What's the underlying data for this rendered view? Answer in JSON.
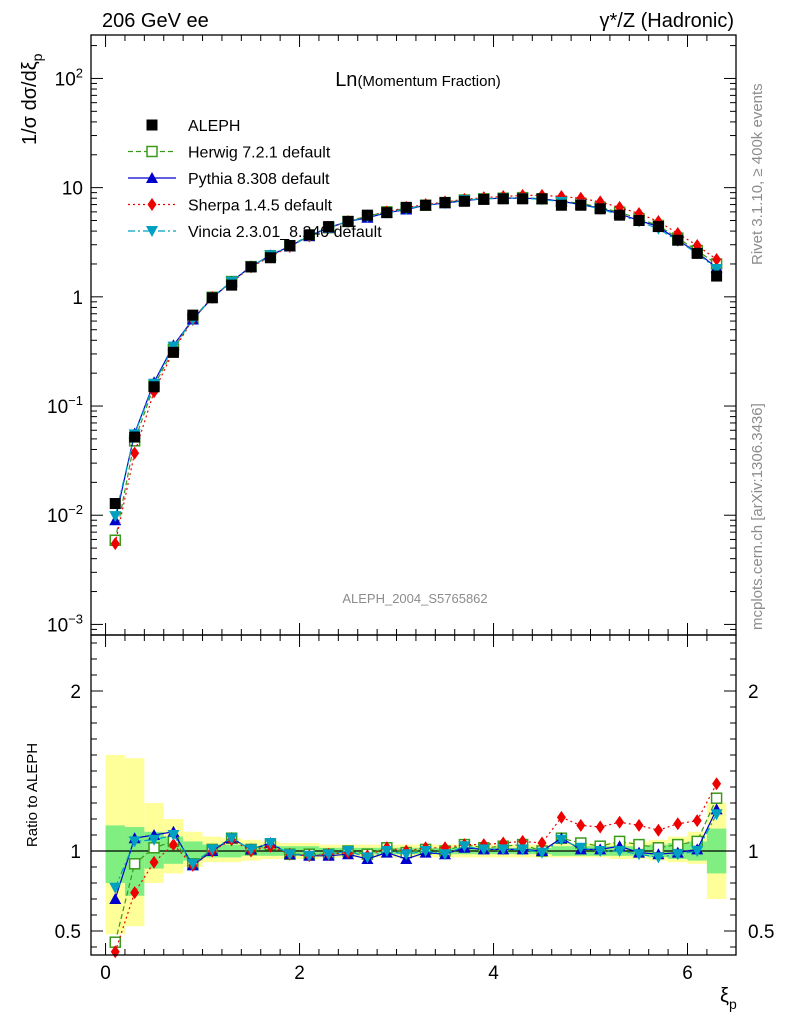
{
  "header": {
    "left": "206 GeV ee",
    "right": "γ*/Z (Hadronic)"
  },
  "side_text": {
    "rivet": "Rivet 3.1.10, ≥ 400k events",
    "mcplots": "mcplots.cern.ch [arXiv:1306.3436]"
  },
  "colors": {
    "aleph": "#000000",
    "herwig": "#3a9a1a",
    "pythia": "#0000cc",
    "sherpa": "#ee0000",
    "vincia": "#00a0c0",
    "band_outer": "#ffff99",
    "band_inner": "#80ee80"
  },
  "chart_data": [
    {
      "type": "line",
      "title": "Ln(Momentum Fraction)",
      "title_main": "Ln",
      "title_sub": "(Momentum Fraction)",
      "watermark": "ALEPH_2004_S5765862",
      "xlabel": "ξ",
      "xlabel_sub": "p",
      "ylabel": "1/σ dσ/dξ",
      "ylabel_sub": "p",
      "yscale": "log",
      "xlim": [
        -0.15,
        6.5
      ],
      "ylim": [
        0.0008,
        250
      ],
      "x_ticks": [
        "0",
        "2",
        "4",
        "6"
      ],
      "y_tick_labels": [
        {
          "v": 0.001,
          "base": "10",
          "exp": "−3"
        },
        {
          "v": 0.01,
          "base": "10",
          "exp": "−2"
        },
        {
          "v": 0.1,
          "base": "10",
          "exp": "−1"
        },
        {
          "v": 1,
          "base": "1",
          "exp": ""
        },
        {
          "v": 10,
          "base": "10",
          "exp": ""
        },
        {
          "v": 100,
          "base": "10",
          "exp": "2"
        }
      ],
      "x": [
        0.1,
        0.3,
        0.5,
        0.7,
        0.9,
        1.1,
        1.3,
        1.5,
        1.7,
        1.9,
        2.1,
        2.3,
        2.5,
        2.7,
        2.9,
        3.1,
        3.3,
        3.5,
        3.7,
        3.9,
        4.1,
        4.3,
        4.5,
        4.7,
        4.9,
        5.1,
        5.3,
        5.5,
        5.7,
        5.9,
        6.1,
        6.3
      ],
      "legend": [
        "ALEPH",
        "Herwig 7.2.1 default",
        "Pythia 8.308 default",
        "Sherpa 1.4.5 default",
        "Vincia 2.3.01_8.240 default"
      ],
      "series": [
        {
          "name": "ALEPH",
          "marker": "square",
          "values": [
            0.0128,
            0.052,
            0.15,
            0.31,
            0.68,
            0.98,
            1.28,
            1.88,
            2.28,
            2.95,
            3.7,
            4.4,
            4.9,
            5.6,
            5.9,
            6.6,
            6.9,
            7.3,
            7.5,
            7.8,
            7.9,
            7.9,
            7.9,
            6.9,
            6.9,
            6.4,
            5.6,
            5.0,
            4.4,
            3.3,
            2.5,
            1.55
          ]
        },
        {
          "name": "Herwig 7.2.1 default",
          "marker": "open-square",
          "values": [
            0.0059,
            0.048,
            0.153,
            0.33,
            0.63,
            0.99,
            1.38,
            1.89,
            2.38,
            2.93,
            3.65,
            4.3,
            4.9,
            5.5,
            6.0,
            6.5,
            6.9,
            7.3,
            7.7,
            7.9,
            8.0,
            8.1,
            7.9,
            7.5,
            7.2,
            6.6,
            5.95,
            5.2,
            4.5,
            3.45,
            2.65,
            2.0
          ]
        },
        {
          "name": "Pythia 8.308 default",
          "marker": "triangle-up",
          "values": [
            0.009,
            0.056,
            0.165,
            0.36,
            0.62,
            0.98,
            1.38,
            1.9,
            2.4,
            2.9,
            3.6,
            4.3,
            4.9,
            5.3,
            5.9,
            6.3,
            6.9,
            7.2,
            7.6,
            7.9,
            8.0,
            8.0,
            7.9,
            7.5,
            7.0,
            6.5,
            5.75,
            5.0,
            4.4,
            3.3,
            2.55,
            1.85
          ]
        },
        {
          "name": "Sherpa 1.4.5 default",
          "marker": "diamond",
          "values": [
            0.0055,
            0.037,
            0.135,
            0.32,
            0.62,
            0.99,
            1.35,
            1.88,
            2.33,
            2.88,
            3.6,
            4.3,
            4.9,
            5.5,
            6.0,
            6.6,
            7.0,
            7.4,
            7.8,
            8.1,
            8.3,
            8.5,
            8.5,
            8.3,
            8.0,
            7.4,
            6.6,
            5.8,
            4.9,
            3.8,
            2.95,
            2.2
          ]
        },
        {
          "name": "Vincia 2.3.01_8.240 default",
          "marker": "triangle-down",
          "values": [
            0.0098,
            0.055,
            0.16,
            0.35,
            0.62,
            0.99,
            1.38,
            1.9,
            2.4,
            2.9,
            3.6,
            4.3,
            4.9,
            5.4,
            5.9,
            6.4,
            6.9,
            7.2,
            7.7,
            7.9,
            8.0,
            8.0,
            7.8,
            7.4,
            7.0,
            6.4,
            5.6,
            4.9,
            4.2,
            3.25,
            2.5,
            1.8
          ]
        }
      ]
    },
    {
      "type": "line",
      "ylabel": "Ratio to ALEPH",
      "xlabel": "ξ",
      "xlabel_sub": "p",
      "xlim": [
        -0.15,
        6.5
      ],
      "ylim": [
        0.35,
        2.35
      ],
      "y_ticks": [
        "0.5",
        "1",
        "2"
      ],
      "x": [
        0.1,
        0.3,
        0.5,
        0.7,
        0.9,
        1.1,
        1.3,
        1.5,
        1.7,
        1.9,
        2.1,
        2.3,
        2.5,
        2.7,
        2.9,
        3.1,
        3.3,
        3.5,
        3.7,
        3.9,
        4.1,
        4.3,
        4.5,
        4.7,
        4.9,
        5.1,
        5.3,
        5.5,
        5.7,
        5.9,
        6.1,
        6.3
      ],
      "band_outer": [
        [
          0.48,
          1.6
        ],
        [
          0.53,
          1.58
        ],
        [
          0.8,
          1.3
        ],
        [
          0.86,
          1.2
        ],
        [
          0.9,
          1.12
        ],
        [
          0.93,
          1.09
        ],
        [
          0.93,
          1.08
        ],
        [
          0.94,
          1.07
        ],
        [
          0.95,
          1.06
        ],
        [
          0.95,
          1.05
        ],
        [
          0.95,
          1.05
        ],
        [
          0.96,
          1.04
        ],
        [
          0.96,
          1.04
        ],
        [
          0.96,
          1.04
        ],
        [
          0.96,
          1.04
        ],
        [
          0.96,
          1.04
        ],
        [
          0.96,
          1.04
        ],
        [
          0.96,
          1.04
        ],
        [
          0.96,
          1.04
        ],
        [
          0.96,
          1.04
        ],
        [
          0.96,
          1.04
        ],
        [
          0.96,
          1.04
        ],
        [
          0.96,
          1.04
        ],
        [
          0.96,
          1.05
        ],
        [
          0.96,
          1.05
        ],
        [
          0.96,
          1.05
        ],
        [
          0.95,
          1.05
        ],
        [
          0.95,
          1.06
        ],
        [
          0.94,
          1.07
        ],
        [
          0.93,
          1.09
        ],
        [
          0.92,
          1.12
        ],
        [
          0.7,
          1.3
        ]
      ],
      "band_inner": [
        [
          0.8,
          1.16
        ],
        [
          0.72,
          1.15
        ],
        [
          0.89,
          1.12
        ],
        [
          0.92,
          1.09
        ],
        [
          0.94,
          1.06
        ],
        [
          0.96,
          1.04
        ],
        [
          0.96,
          1.04
        ],
        [
          0.97,
          1.03
        ],
        [
          0.97,
          1.03
        ],
        [
          0.97,
          1.03
        ],
        [
          0.97,
          1.03
        ],
        [
          0.98,
          1.02
        ],
        [
          0.98,
          1.02
        ],
        [
          0.98,
          1.02
        ],
        [
          0.98,
          1.02
        ],
        [
          0.98,
          1.02
        ],
        [
          0.98,
          1.02
        ],
        [
          0.98,
          1.02
        ],
        [
          0.98,
          1.02
        ],
        [
          0.98,
          1.02
        ],
        [
          0.98,
          1.02
        ],
        [
          0.98,
          1.02
        ],
        [
          0.98,
          1.02
        ],
        [
          0.97,
          1.03
        ],
        [
          0.97,
          1.03
        ],
        [
          0.97,
          1.03
        ],
        [
          0.97,
          1.03
        ],
        [
          0.97,
          1.03
        ],
        [
          0.96,
          1.04
        ],
        [
          0.95,
          1.05
        ],
        [
          0.94,
          1.06
        ],
        [
          0.86,
          1.14
        ]
      ],
      "series": [
        {
          "name": "Herwig 7.2.1 default",
          "marker": "open-square",
          "values": [
            0.43,
            0.92,
            1.02,
            1.06,
            0.92,
            1.01,
            1.08,
            1.01,
            1.04,
            0.98,
            0.98,
            0.98,
            1.0,
            0.98,
            1.02,
            0.99,
            1.01,
            1.0,
            1.04,
            1.02,
            1.03,
            1.04,
            1.0,
            1.08,
            1.05,
            1.03,
            1.06,
            1.04,
            1.02,
            1.04,
            1.06,
            1.33
          ]
        },
        {
          "name": "Pythia 8.308 default",
          "marker": "triangle-up",
          "values": [
            0.7,
            1.08,
            1.1,
            1.12,
            0.91,
            1.0,
            1.08,
            1.01,
            1.05,
            0.98,
            0.97,
            0.97,
            0.98,
            0.95,
            0.99,
            0.95,
            0.99,
            0.98,
            1.02,
            1.01,
            1.01,
            1.01,
            1.0,
            1.08,
            1.01,
            1.01,
            1.03,
            0.99,
            0.98,
            0.99,
            1.01,
            1.26
          ]
        },
        {
          "name": "Sherpa 1.4.5 default",
          "marker": "diamond",
          "values": [
            0.37,
            0.74,
            0.93,
            1.04,
            0.91,
            1.0,
            1.07,
            1.0,
            1.03,
            0.98,
            0.97,
            0.98,
            0.99,
            0.97,
            1.02,
            1.0,
            1.02,
            1.02,
            1.04,
            1.04,
            1.05,
            1.06,
            1.05,
            1.21,
            1.16,
            1.15,
            1.18,
            1.16,
            1.13,
            1.17,
            1.19,
            1.42
          ]
        },
        {
          "name": "Vincia 2.3.01_8.240 default",
          "marker": "triangle-down",
          "values": [
            0.77,
            1.06,
            1.07,
            1.1,
            0.92,
            1.01,
            1.08,
            1.01,
            1.05,
            0.98,
            0.97,
            0.98,
            1.0,
            0.96,
            1.0,
            0.98,
            1.0,
            0.98,
            1.03,
            1.01,
            1.01,
            1.01,
            0.99,
            1.07,
            1.02,
            1.0,
            1.0,
            0.98,
            0.96,
            0.98,
            1.0,
            1.23
          ]
        }
      ]
    }
  ]
}
